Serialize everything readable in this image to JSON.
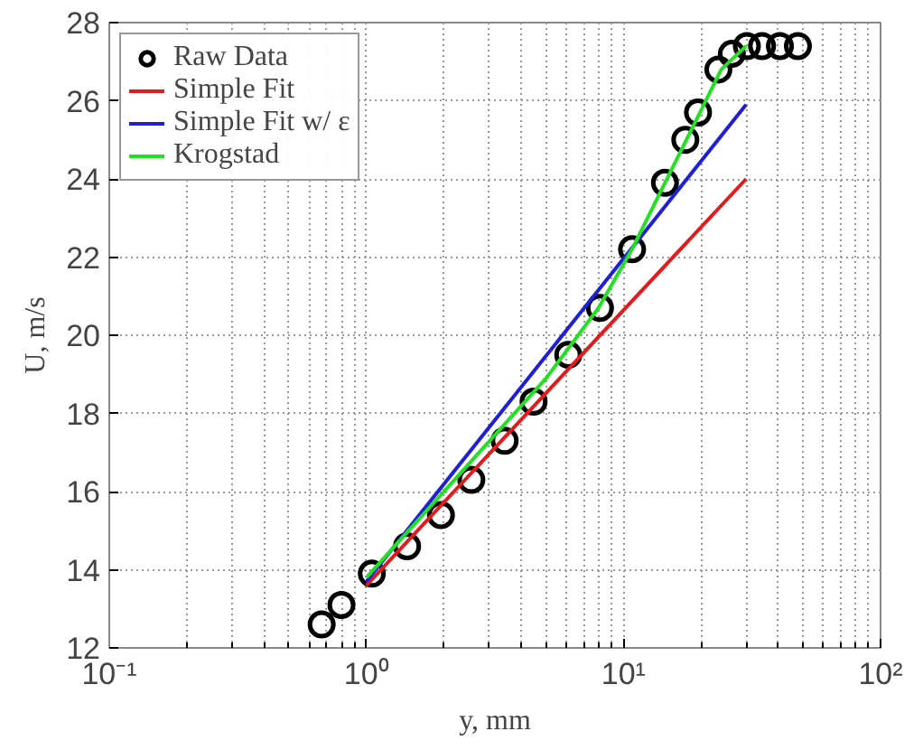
{
  "chart_data": {
    "type": "line",
    "xlabel": "y, mm",
    "ylabel": "U, m/s",
    "log": "x",
    "grid": true,
    "legend": "top left",
    "xlim": [
      0.1,
      100
    ],
    "ylim": [
      12,
      28
    ],
    "xticks": [
      {
        "value": 0.1,
        "label": "10⁻¹"
      },
      {
        "value": 1,
        "label": "10⁰"
      },
      {
        "value": 10,
        "label": "10¹"
      },
      {
        "value": 100,
        "label": "10²"
      }
    ],
    "yticks": [
      12,
      14,
      16,
      18,
      20,
      22,
      24,
      26,
      28
    ],
    "series": [
      {
        "name": "Raw Data",
        "type": "scatter",
        "marker": "circle",
        "color": "#000000",
        "x": [
          0.67,
          0.8,
          1.05,
          1.44,
          1.95,
          2.56,
          3.45,
          4.47,
          6.1,
          8.1,
          10.8,
          14.5,
          17.4,
          19.5,
          23.4,
          26.4,
          30.2,
          34.6,
          40.6,
          47.7
        ],
        "values": [
          12.6,
          13.1,
          13.9,
          14.6,
          15.4,
          16.3,
          17.3,
          18.3,
          19.5,
          20.7,
          22.2,
          23.9,
          25.0,
          25.7,
          26.8,
          27.2,
          27.4,
          27.4,
          27.4,
          27.4
        ]
      },
      {
        "name": "Simple Fit",
        "color": "#e41a1c",
        "x": [
          1,
          30
        ],
        "values": [
          13.6,
          24.0
        ]
      },
      {
        "name": "Simple Fit w/ ε",
        "color": "#1f1fd8",
        "x": [
          1,
          30
        ],
        "values": [
          13.7,
          25.9
        ]
      },
      {
        "name": "Krogstad",
        "color": "#22e022",
        "x": [
          1,
          5,
          8,
          10.8,
          14.5,
          19.5,
          24,
          30
        ],
        "values": [
          13.8,
          18.9,
          20.7,
          22.2,
          23.9,
          25.6,
          26.8,
          27.4
        ]
      }
    ]
  }
}
